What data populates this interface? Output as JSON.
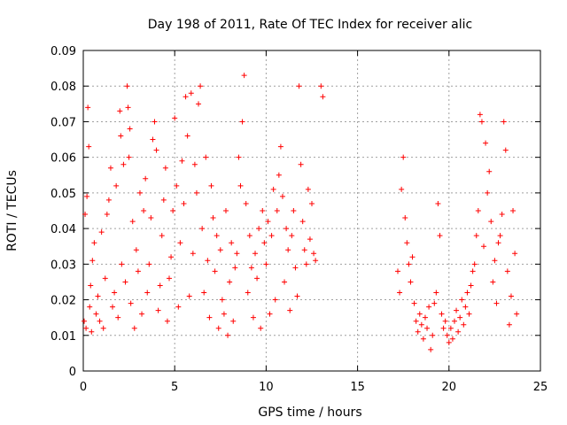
{
  "chart_data": {
    "type": "scatter",
    "title": "Day 198 of 2011, Rate Of TEC Index for receiver alic",
    "xlabel": "GPS time / hours",
    "ylabel": "ROTI / TECUs",
    "xlim": [
      0,
      25
    ],
    "ylim": [
      0,
      0.09
    ],
    "xticks": [
      "0",
      "5",
      "10",
      "15",
      "20",
      "25"
    ],
    "yticks": [
      "0",
      "0.01",
      "0.02",
      "0.03",
      "0.04",
      "0.05",
      "0.06",
      "0.07",
      "0.08",
      "0.09"
    ],
    "grid": true,
    "marker": "+",
    "color": "#ff0000",
    "points": [
      [
        0.05,
        0.014
      ],
      [
        0.1,
        0.044
      ],
      [
        0.15,
        0.012
      ],
      [
        0.2,
        0.049
      ],
      [
        0.25,
        0.074
      ],
      [
        0.3,
        0.063
      ],
      [
        0.35,
        0.018
      ],
      [
        0.4,
        0.024
      ],
      [
        0.45,
        0.011
      ],
      [
        0.5,
        0.031
      ],
      [
        0.6,
        0.036
      ],
      [
        0.7,
        0.016
      ],
      [
        0.8,
        0.021
      ],
      [
        0.9,
        0.014
      ],
      [
        1.0,
        0.039
      ],
      [
        1.1,
        0.012
      ],
      [
        1.2,
        0.026
      ],
      [
        1.3,
        0.044
      ],
      [
        1.4,
        0.048
      ],
      [
        1.5,
        0.057
      ],
      [
        1.6,
        0.018
      ],
      [
        1.7,
        0.022
      ],
      [
        1.8,
        0.052
      ],
      [
        1.9,
        0.015
      ],
      [
        2.0,
        0.073
      ],
      [
        2.05,
        0.066
      ],
      [
        2.1,
        0.03
      ],
      [
        2.2,
        0.058
      ],
      [
        2.3,
        0.025
      ],
      [
        2.4,
        0.08
      ],
      [
        2.45,
        0.074
      ],
      [
        2.5,
        0.06
      ],
      [
        2.55,
        0.068
      ],
      [
        2.6,
        0.019
      ],
      [
        2.7,
        0.042
      ],
      [
        2.8,
        0.012
      ],
      [
        2.9,
        0.034
      ],
      [
        3.0,
        0.028
      ],
      [
        3.1,
        0.05
      ],
      [
        3.2,
        0.016
      ],
      [
        3.3,
        0.045
      ],
      [
        3.4,
        0.054
      ],
      [
        3.5,
        0.022
      ],
      [
        3.6,
        0.03
      ],
      [
        3.7,
        0.043
      ],
      [
        3.8,
        0.065
      ],
      [
        3.9,
        0.07
      ],
      [
        4.0,
        0.062
      ],
      [
        4.1,
        0.017
      ],
      [
        4.2,
        0.024
      ],
      [
        4.3,
        0.038
      ],
      [
        4.4,
        0.048
      ],
      [
        4.5,
        0.057
      ],
      [
        4.6,
        0.014
      ],
      [
        4.7,
        0.026
      ],
      [
        4.8,
        0.032
      ],
      [
        4.9,
        0.045
      ],
      [
        5.0,
        0.071
      ],
      [
        5.1,
        0.052
      ],
      [
        5.2,
        0.018
      ],
      [
        5.3,
        0.036
      ],
      [
        5.4,
        0.059
      ],
      [
        5.5,
        0.047
      ],
      [
        5.6,
        0.077
      ],
      [
        5.7,
        0.066
      ],
      [
        5.8,
        0.021
      ],
      [
        5.9,
        0.078
      ],
      [
        6.0,
        0.033
      ],
      [
        6.1,
        0.058
      ],
      [
        6.2,
        0.05
      ],
      [
        6.3,
        0.075
      ],
      [
        6.4,
        0.08
      ],
      [
        6.5,
        0.04
      ],
      [
        6.6,
        0.022
      ],
      [
        6.7,
        0.06
      ],
      [
        6.8,
        0.031
      ],
      [
        6.9,
        0.015
      ],
      [
        7.0,
        0.052
      ],
      [
        7.1,
        0.043
      ],
      [
        7.2,
        0.028
      ],
      [
        7.3,
        0.038
      ],
      [
        7.4,
        0.012
      ],
      [
        7.5,
        0.034
      ],
      [
        7.6,
        0.02
      ],
      [
        7.7,
        0.016
      ],
      [
        7.8,
        0.045
      ],
      [
        7.9,
        0.01
      ],
      [
        8.0,
        0.025
      ],
      [
        8.1,
        0.036
      ],
      [
        8.2,
        0.014
      ],
      [
        8.3,
        0.029
      ],
      [
        8.4,
        0.033
      ],
      [
        8.5,
        0.06
      ],
      [
        8.6,
        0.052
      ],
      [
        8.7,
        0.07
      ],
      [
        8.8,
        0.083
      ],
      [
        8.9,
        0.047
      ],
      [
        9.0,
        0.022
      ],
      [
        9.1,
        0.038
      ],
      [
        9.2,
        0.029
      ],
      [
        9.3,
        0.015
      ],
      [
        9.4,
        0.033
      ],
      [
        9.5,
        0.026
      ],
      [
        9.6,
        0.04
      ],
      [
        9.7,
        0.012
      ],
      [
        9.8,
        0.045
      ],
      [
        9.9,
        0.036
      ],
      [
        10.0,
        0.03
      ],
      [
        10.1,
        0.042
      ],
      [
        10.2,
        0.016
      ],
      [
        10.3,
        0.038
      ],
      [
        10.4,
        0.051
      ],
      [
        10.5,
        0.02
      ],
      [
        10.6,
        0.045
      ],
      [
        10.7,
        0.055
      ],
      [
        10.8,
        0.063
      ],
      [
        10.9,
        0.049
      ],
      [
        11.0,
        0.025
      ],
      [
        11.1,
        0.04
      ],
      [
        11.2,
        0.034
      ],
      [
        11.3,
        0.017
      ],
      [
        11.4,
        0.038
      ],
      [
        11.5,
        0.045
      ],
      [
        11.6,
        0.029
      ],
      [
        11.7,
        0.021
      ],
      [
        11.8,
        0.08
      ],
      [
        11.9,
        0.058
      ],
      [
        12.0,
        0.042
      ],
      [
        12.1,
        0.034
      ],
      [
        12.2,
        0.03
      ],
      [
        12.3,
        0.051
      ],
      [
        12.4,
        0.037
      ],
      [
        12.5,
        0.047
      ],
      [
        12.6,
        0.033
      ],
      [
        12.7,
        0.031
      ],
      [
        13.0,
        0.08
      ],
      [
        13.1,
        0.077
      ],
      [
        17.2,
        0.028
      ],
      [
        17.3,
        0.022
      ],
      [
        17.4,
        0.051
      ],
      [
        17.5,
        0.06
      ],
      [
        17.6,
        0.043
      ],
      [
        17.7,
        0.036
      ],
      [
        17.8,
        0.03
      ],
      [
        17.9,
        0.025
      ],
      [
        18.0,
        0.032
      ],
      [
        18.1,
        0.019
      ],
      [
        18.2,
        0.014
      ],
      [
        18.3,
        0.011
      ],
      [
        18.4,
        0.016
      ],
      [
        18.5,
        0.013
      ],
      [
        18.6,
        0.009
      ],
      [
        18.7,
        0.015
      ],
      [
        18.8,
        0.012
      ],
      [
        18.9,
        0.018
      ],
      [
        19.0,
        0.006
      ],
      [
        19.1,
        0.01
      ],
      [
        19.2,
        0.019
      ],
      [
        19.3,
        0.022
      ],
      [
        19.4,
        0.047
      ],
      [
        19.5,
        0.038
      ],
      [
        19.6,
        0.016
      ],
      [
        19.7,
        0.012
      ],
      [
        19.8,
        0.014
      ],
      [
        19.9,
        0.01
      ],
      [
        20.0,
        0.008
      ],
      [
        20.1,
        0.012
      ],
      [
        20.2,
        0.009
      ],
      [
        20.3,
        0.014
      ],
      [
        20.4,
        0.017
      ],
      [
        20.5,
        0.011
      ],
      [
        20.6,
        0.015
      ],
      [
        20.7,
        0.02
      ],
      [
        20.8,
        0.013
      ],
      [
        20.9,
        0.018
      ],
      [
        21.0,
        0.022
      ],
      [
        21.1,
        0.016
      ],
      [
        21.2,
        0.024
      ],
      [
        21.3,
        0.028
      ],
      [
        21.4,
        0.03
      ],
      [
        21.5,
        0.038
      ],
      [
        21.6,
        0.045
      ],
      [
        21.7,
        0.072
      ],
      [
        21.8,
        0.07
      ],
      [
        21.9,
        0.035
      ],
      [
        22.0,
        0.064
      ],
      [
        22.1,
        0.05
      ],
      [
        22.2,
        0.056
      ],
      [
        22.3,
        0.042
      ],
      [
        22.4,
        0.025
      ],
      [
        22.5,
        0.031
      ],
      [
        22.6,
        0.019
      ],
      [
        22.7,
        0.036
      ],
      [
        22.8,
        0.038
      ],
      [
        22.9,
        0.044
      ],
      [
        23.0,
        0.07
      ],
      [
        23.1,
        0.062
      ],
      [
        23.2,
        0.028
      ],
      [
        23.3,
        0.013
      ],
      [
        23.4,
        0.021
      ],
      [
        23.5,
        0.045
      ],
      [
        23.6,
        0.033
      ],
      [
        23.7,
        0.016
      ]
    ]
  }
}
